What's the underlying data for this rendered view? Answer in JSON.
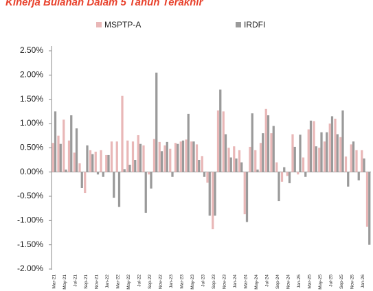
{
  "chart_data": {
    "type": "bar",
    "title": "Kinerja Bulanan Dalam 5 Tahun Terakhir",
    "categories": [
      "Mar-21",
      null,
      "May-21",
      null,
      "Jul-21",
      null,
      "Sep-21",
      null,
      "Nov-21",
      null,
      "Jan-22",
      null,
      "Mar-22",
      null,
      "May-22",
      null,
      "Jul-22",
      null,
      "Sep-22",
      null,
      "Nov-22",
      null,
      "Jan-23",
      null,
      "Mar-23",
      null,
      "May-23",
      null,
      "Jul-23",
      null,
      "Sep-23",
      null,
      "Nov-23",
      null,
      "Jan-24",
      null,
      "Mar-24",
      null,
      "May-24",
      null,
      "Jul-24",
      null,
      "Sep-24",
      null,
      "Nov-24",
      null,
      "Jan-25",
      null,
      "Mar-25",
      null,
      "May-25",
      null,
      "Jul-25",
      null,
      "Sep-25",
      null,
      "Nov-25",
      null,
      "Jan-26",
      null
    ],
    "series": [
      {
        "name": "MSPTP-A",
        "color": "#e9b7b7",
        "values": [
          0.6,
          0.75,
          1.08,
          0.65,
          0.4,
          0.18,
          -0.43,
          0.45,
          0.42,
          0.45,
          0.35,
          0.63,
          0.63,
          1.57,
          0.65,
          0.63,
          0.76,
          0.55,
          -0.05,
          0.68,
          0.62,
          0.55,
          0.48,
          0.6,
          0.63,
          0.67,
          0.63,
          0.57,
          0.33,
          -0.22,
          -1.18,
          1.27,
          1.25,
          0.5,
          0.53,
          0.45,
          -0.87,
          0.52,
          0.45,
          0.6,
          1.3,
          0.8,
          0.2,
          -0.2,
          -0.08,
          0.78,
          -0.05,
          0.3,
          0.88,
          1.05,
          0.5,
          0.63,
          1.0,
          1.1,
          0.72,
          0.32,
          0.57,
          0.45,
          0.45,
          -1.13
        ]
      },
      {
        "name": "IRDFI",
        "color": "#9a9a9a",
        "values": [
          1.25,
          0.58,
          0.05,
          1.17,
          0.9,
          -0.33,
          0.55,
          0.37,
          -0.05,
          -0.1,
          0.35,
          -0.53,
          -0.72,
          0.06,
          0.15,
          0.25,
          0.58,
          -0.84,
          -0.34,
          2.05,
          0.43,
          0.62,
          -0.1,
          0.58,
          0.65,
          1.2,
          0.63,
          0.25,
          -0.1,
          -0.9,
          -0.9,
          1.7,
          0.78,
          0.3,
          0.28,
          0.2,
          -1.03,
          1.21,
          0.05,
          0.8,
          1.17,
          0.95,
          -0.6,
          0.1,
          -0.23,
          0.52,
          0.77,
          -0.1,
          1.06,
          0.53,
          0.82,
          0.82,
          1.15,
          0.78,
          1.27,
          -0.3,
          0.63,
          -0.17,
          0.28,
          -1.5
        ]
      }
    ],
    "ylim": [
      -2.0,
      2.5
    ],
    "yticks": [
      {
        "value": 2.5,
        "label": "2.50%"
      },
      {
        "value": 2.0,
        "label": "2.00%"
      },
      {
        "value": 1.5,
        "label": "1.50%"
      },
      {
        "value": 1.0,
        "label": "1.00%"
      },
      {
        "value": 0.5,
        "label": "0.50%"
      },
      {
        "value": 0,
        "label": "0.00%"
      },
      {
        "value": -0.5,
        "label": "-0.50%"
      },
      {
        "value": -1.0,
        "label": "-1.00%"
      },
      {
        "value": -1.5,
        "label": "-1.50%"
      },
      {
        "value": -2.0,
        "label": "-2.00%"
      }
    ],
    "legend": "top"
  }
}
